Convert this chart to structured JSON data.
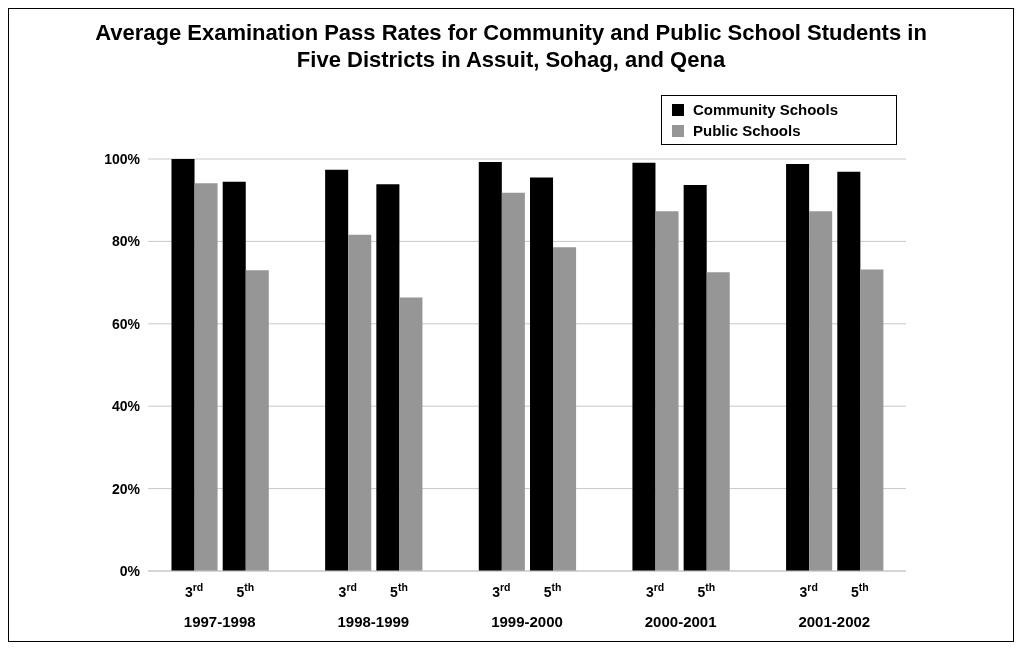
{
  "chart_data": {
    "type": "bar",
    "title": "Average Examination Pass Rates for Community and Public School Students in Five Districts in Assuit, Sohag, and Qena",
    "categories": [
      "3$^{rd}$",
      "5$^{th}$",
      "3$^{rd}$",
      "5$^{th}$",
      "3$^{rd}$",
      "5$^{th}$",
      "3$^{rd}$",
      "5$^{th}$",
      "3$^{rd}$",
      "5$^{th}$"
    ],
    "annotations": [
      "1997-1998",
      "1998-1999",
      "1999-2000",
      "2000-2001",
      "2001-2002"
    ],
    "series": [
      {
        "name": "Community Schools",
        "color": "#000000",
        "values": [
          100,
          94.5,
          97.4,
          93.9,
          99.3,
          95.5,
          99.1,
          93.7,
          98.8,
          96.9
        ]
      },
      {
        "name": "Public Schools",
        "color": "#969696",
        "values": [
          94.1,
          73.0,
          81.6,
          66.4,
          91.8,
          78.6,
          87.3,
          72.5,
          87.3,
          73.2
        ]
      }
    ],
    "ylim": [
      0,
      100
    ],
    "yticks": [
      {
        "value": 0,
        "label": "0%"
      },
      {
        "value": 20,
        "label": "20%"
      },
      {
        "value": 40,
        "label": "40%"
      },
      {
        "value": 60,
        "label": "60%"
      },
      {
        "value": 80,
        "label": "80%"
      },
      {
        "value": 100,
        "label": "100%"
      }
    ],
    "grid": "y",
    "legend": "top right"
  }
}
